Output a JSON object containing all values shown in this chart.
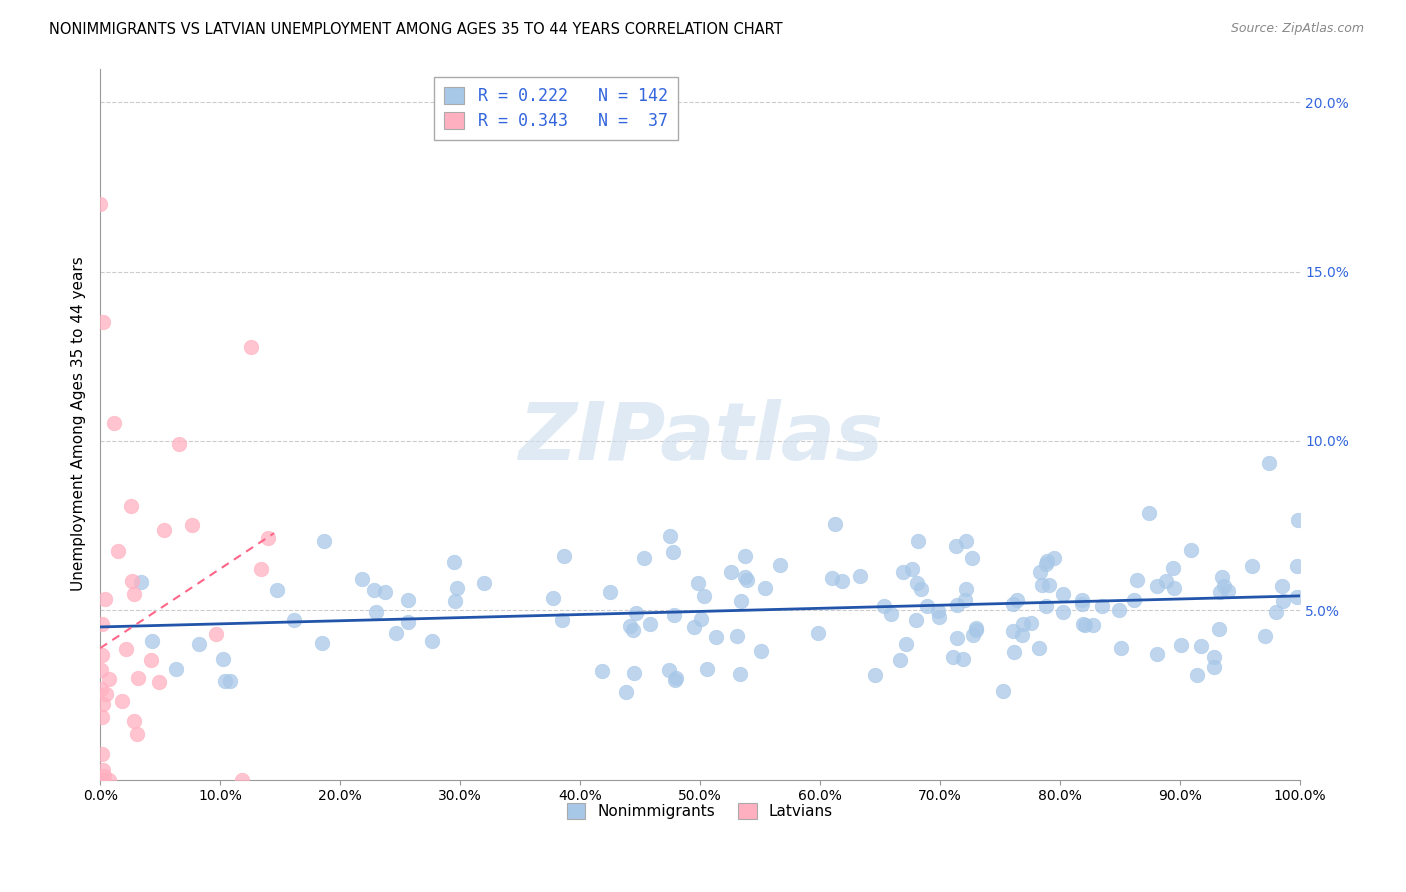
{
  "title": "NONIMMIGRANTS VS LATVIAN UNEMPLOYMENT AMONG AGES 35 TO 44 YEARS CORRELATION CHART",
  "source": "Source: ZipAtlas.com",
  "ylabel": "Unemployment Among Ages 35 to 44 years",
  "xlim": [
    0,
    1.0
  ],
  "ylim": [
    0,
    0.21
  ],
  "xticks": [
    0.0,
    0.1,
    0.2,
    0.3,
    0.4,
    0.5,
    0.6,
    0.7,
    0.8,
    0.9,
    1.0
  ],
  "xtick_labels": [
    "0.0%",
    "10.0%",
    "20.0%",
    "30.0%",
    "40.0%",
    "50.0%",
    "60.0%",
    "70.0%",
    "80.0%",
    "90.0%",
    "100.0%"
  ],
  "yticks": [
    0.05,
    0.1,
    0.15,
    0.2
  ],
  "ytick_labels": [
    "5.0%",
    "10.0%",
    "15.0%",
    "20.0%"
  ],
  "blue_scatter_color": "#A8C8E8",
  "pink_scatter_color": "#FFB0C0",
  "blue_line_color": "#2255AA",
  "pink_line_color": "#FF6688",
  "legend_text_color": "#3366DD",
  "legend_blue_label": "R = 0.222   N = 142",
  "legend_pink_label": "R = 0.343   N =  37",
  "nonimmigrant_legend": "Nonimmigrants",
  "latvian_legend": "Latvians",
  "R_blue": 0.222,
  "N_blue": 142,
  "R_pink": 0.343,
  "N_pink": 37,
  "background_color": "#FFFFFF",
  "watermark": "ZIPatlas",
  "grid_color": "#CCCCCC",
  "title_fontsize": 10.5,
  "source_fontsize": 9
}
